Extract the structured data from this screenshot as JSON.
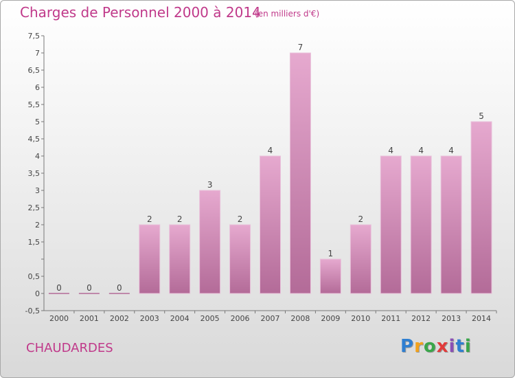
{
  "page": {
    "title": "Charges de Personnel 2000 à 2014",
    "subtitle": "(en milliers d'€)",
    "commune": "CHAUDARDES",
    "logo": {
      "letters": [
        "P",
        "r",
        "o",
        "x",
        "i",
        "t",
        "i"
      ],
      "colors": [
        "#2f7fd1",
        "#f3a21b",
        "#3aa64a",
        "#e13b3b",
        "#8a4fb5",
        "#2f7fd1",
        "#3aa64a"
      ]
    }
  },
  "chart_data": {
    "type": "bar",
    "categories": [
      "2000",
      "2001",
      "2002",
      "2003",
      "2004",
      "2005",
      "2006",
      "2007",
      "2008",
      "2009",
      "2010",
      "2011",
      "2012",
      "2013",
      "2014"
    ],
    "values": [
      0,
      0,
      0,
      2,
      2,
      3,
      2,
      4,
      7,
      1,
      2,
      4,
      4,
      4,
      5
    ],
    "data_labels": [
      "0",
      "0",
      "0",
      "2",
      "2",
      "3",
      "2",
      "4",
      "7",
      "1",
      "2",
      "4",
      "4",
      "4",
      "5"
    ],
    "ylim": [
      -0.5,
      7.5
    ],
    "yticks": [
      "-0,5",
      "0",
      "0,5",
      "",
      "1,5",
      "2",
      "2,5",
      "3",
      "3,5",
      "4",
      "4,5",
      "5",
      "5,5",
      "6",
      "6,5",
      "7",
      "7,5"
    ],
    "ytick_values": [
      -0.5,
      0,
      0.5,
      1,
      1.5,
      2,
      2.5,
      3,
      3.5,
      4,
      4.5,
      5,
      5.5,
      6,
      6.5,
      7,
      7.5
    ],
    "grid": false,
    "bar_color": "#d98fbd",
    "xlabel": "",
    "ylabel": ""
  }
}
